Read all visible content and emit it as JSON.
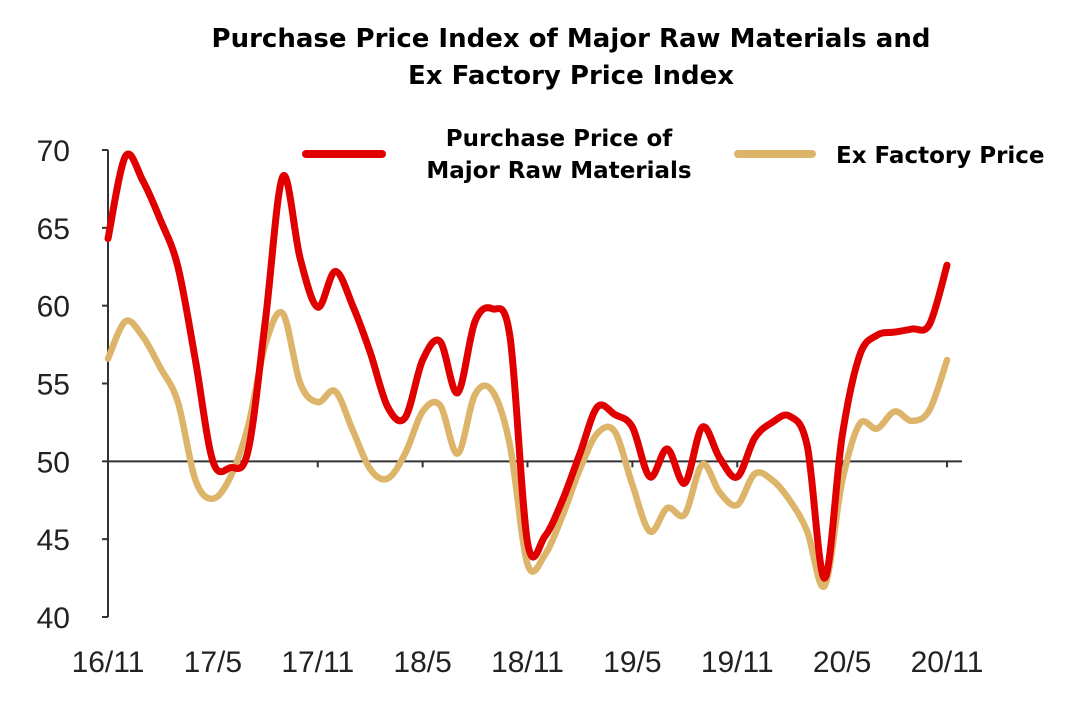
{
  "chart_data": {
    "type": "line",
    "title_lines": [
      "Purchase Price Index of Major Raw Materials and",
      "Ex Factory Price Index"
    ],
    "xlabel": "",
    "ylabel": "",
    "ylim": [
      40,
      70
    ],
    "yticks": [
      40,
      45,
      50,
      55,
      60,
      65,
      70
    ],
    "x_tick_labels": [
      "16/11",
      "17/5",
      "17/11",
      "18/5",
      "18/11",
      "19/5",
      "19/11",
      "20/5",
      "20/11"
    ],
    "reference_line": 50,
    "x": [
      "16/11",
      "16/12",
      "17/1",
      "17/2",
      "17/3",
      "17/4",
      "17/5",
      "17/6",
      "17/7",
      "17/8",
      "17/9",
      "17/10",
      "17/11",
      "17/12",
      "18/1",
      "18/2",
      "18/3",
      "18/4",
      "18/5",
      "18/6",
      "18/7",
      "18/8",
      "18/9",
      "18/10",
      "18/11",
      "18/12",
      "19/1",
      "19/2",
      "19/3",
      "19/4",
      "19/5",
      "19/6",
      "19/7",
      "19/8",
      "19/9",
      "19/10",
      "19/11",
      "19/12",
      "20/1",
      "20/2",
      "20/3",
      "20/4",
      "20/5",
      "20/6",
      "20/7",
      "20/8",
      "20/9",
      "20/10",
      "20/11"
    ],
    "series": [
      {
        "name_lines": [
          "Purchase Price of",
          "Major Raw Materials"
        ],
        "color": "#e00000",
        "values": [
          64.3,
          69.6,
          68.0,
          65.5,
          62.5,
          56.5,
          50.0,
          49.6,
          50.6,
          59.0,
          68.3,
          63.0,
          59.9,
          62.2,
          60.0,
          57.0,
          53.5,
          52.8,
          56.5,
          57.7,
          54.4,
          59.0,
          59.8,
          58.0,
          44.8,
          45.2,
          47.5,
          50.5,
          53.5,
          53.0,
          52.2,
          49.0,
          50.8,
          48.6,
          52.2,
          50.2,
          49.0,
          51.5,
          52.5,
          52.9,
          51.0,
          42.5,
          51.6,
          56.8,
          58.1,
          58.3,
          58.5,
          58.8,
          62.6
        ]
      },
      {
        "name_lines": [
          "Ex Factory Price"
        ],
        "color": "#ddb56a",
        "values": [
          56.6,
          59.0,
          58.0,
          56.0,
          53.8,
          48.8,
          47.6,
          49.0,
          52.2,
          57.5,
          59.5,
          55.0,
          53.8,
          54.5,
          52.0,
          49.5,
          48.9,
          50.5,
          53.2,
          53.6,
          50.5,
          54.3,
          54.5,
          51.0,
          43.4,
          44.0,
          46.5,
          49.5,
          51.8,
          51.9,
          48.5,
          45.5,
          47.0,
          46.6,
          49.8,
          48.0,
          47.2,
          49.2,
          48.8,
          47.5,
          45.5,
          42.0,
          48.7,
          52.4,
          52.1,
          53.2,
          52.6,
          53.3,
          56.5
        ]
      }
    ],
    "legend_position": "top"
  }
}
